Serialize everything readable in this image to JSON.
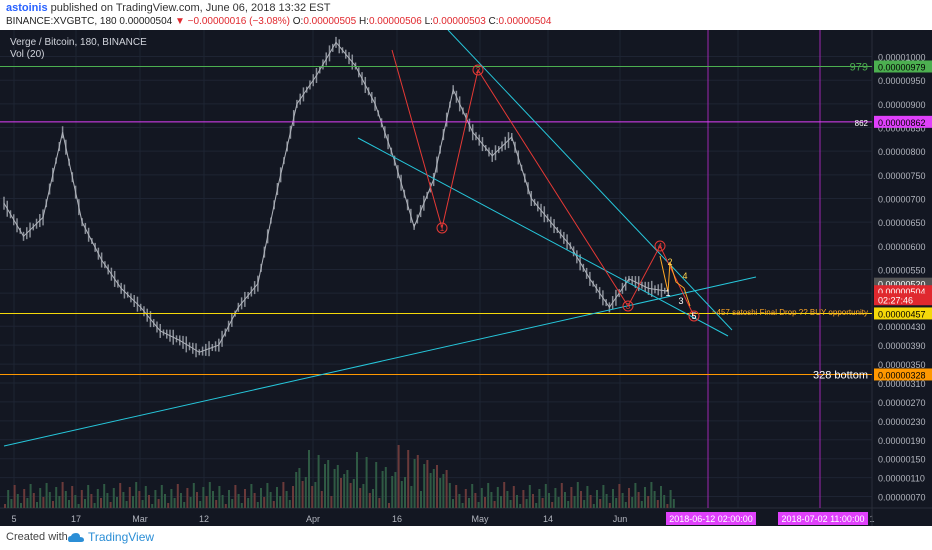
{
  "header": {
    "username": "astoinis",
    "published_text": "published on TradingView.com, June 06, 2018 13:32 EST",
    "symbol_line_prefix": "BINANCE:XVGBTC, 180  0.00000504",
    "change_text": "−0.00000016 (−3.08%)",
    "ohlc": {
      "O": "0.00000505",
      "H": "0.00000506",
      "L": "0.00000503",
      "C": "0.00000504"
    }
  },
  "chart_data": {
    "type": "line",
    "title": "Verge / Bitcoin, 180, BINANCE",
    "indicator_label": "Vol (20)",
    "x_tick_labels": [
      "5",
      "17",
      "Mar",
      "12",
      "Apr",
      "16",
      "May",
      "14",
      "Jun",
      "18",
      "1"
    ],
    "y_tick_labels": [
      "0.00001000",
      "0.00000950",
      "0.00000900",
      "0.00000850",
      "0.00000800",
      "0.00000750",
      "0.00000700",
      "0.00000650",
      "0.00000600",
      "0.00000550",
      "0.00000500",
      "0.00000430",
      "0.00000390",
      "0.00000350",
      "0.00000310",
      "0.00000270",
      "0.00000230",
      "0.00000190",
      "0.00000150",
      "0.00000110",
      "0.00000070"
    ],
    "ylim": [
      5e-07,
      1.035e-05
    ],
    "price_series": {
      "name": "XVGBTC",
      "x": [
        "Feb 5",
        "Feb 10",
        "Feb 14",
        "Feb 17",
        "Feb 21",
        "Feb 25",
        "Mar 1",
        "Mar 5",
        "Mar 9",
        "Mar 13",
        "Mar 17",
        "Mar 20",
        "Mar 24",
        "Mar 28",
        "Apr 1",
        "Apr 4",
        "Apr 7",
        "Apr 10",
        "Apr 13",
        "Apr 16",
        "Apr 19",
        "Apr 23",
        "Apr 26",
        "Apr 30",
        "May 3",
        "May 7",
        "May 10",
        "May 14",
        "May 18",
        "May 22",
        "May 26",
        "May 29",
        "Jun 1",
        "Jun 4",
        "Jun 6"
      ],
      "y": [
        6.9e-06,
        6.2e-06,
        6.6e-06,
        8.4e-06,
        6.5e-06,
        5.7e-06,
        5.1e-06,
        4.7e-06,
        4.2e-06,
        4e-06,
        3.75e-06,
        3.9e-06,
        4.7e-06,
        5.2e-06,
        7.2e-06,
        9e-06,
        9.6e-06,
        1.03e-05,
        9.8e-06,
        9e-06,
        7.8e-06,
        6.4e-06,
        7.4e-06,
        9.3e-06,
        8.4e-06,
        7.9e-06,
        8.3e-06,
        7e-06,
        6.5e-06,
        6e-06,
        5.3e-06,
        4.7e-06,
        5.3e-06,
        5.1e-06,
        5.04e-06
      ]
    },
    "horizontal_levels": [
      {
        "label": "979",
        "value": 9.79e-06,
        "color": "#4caf50",
        "price_label": "0.00000979"
      },
      {
        "label": "862",
        "value": 8.62e-06,
        "color": "#e040fb",
        "price_label": "0.00000862"
      },
      {
        "label": "",
        "value": 4.57e-06,
        "color": "#f5d90a",
        "price_label": "0.00000457"
      },
      {
        "label": "328 bottom",
        "value": 3.28e-06,
        "color": "#ff9800",
        "price_label": "0.00000328"
      }
    ],
    "price_tags": [
      {
        "text": "0.00000520",
        "value": 5.2e-06,
        "color": "#555555"
      },
      {
        "text": "0.00000504",
        "value": 5.04e-06,
        "color": "#e0282e"
      },
      {
        "text": "02:27:46",
        "value": 4.87e-06,
        "color": "#e0282e"
      }
    ],
    "annotation": "~457 satoshi Final Drop ?? BUY opportunity",
    "wave_labels_red": [
      "1",
      "2",
      "3",
      "4",
      "5"
    ],
    "wave_labels_orange": [
      "1",
      "2",
      "3",
      "4",
      "5"
    ],
    "date_tags": [
      "2018-06-12 02:00:00",
      "2018-07-02 11:00:00"
    ],
    "colors": {
      "trendline": "#26c6da",
      "wave_red": "#e53935",
      "wave_orange": "#ffa726",
      "background": "#131722",
      "candle": "#9e9e9e"
    }
  },
  "footer": {
    "created_with": "Created with",
    "brand": "TradingView"
  }
}
